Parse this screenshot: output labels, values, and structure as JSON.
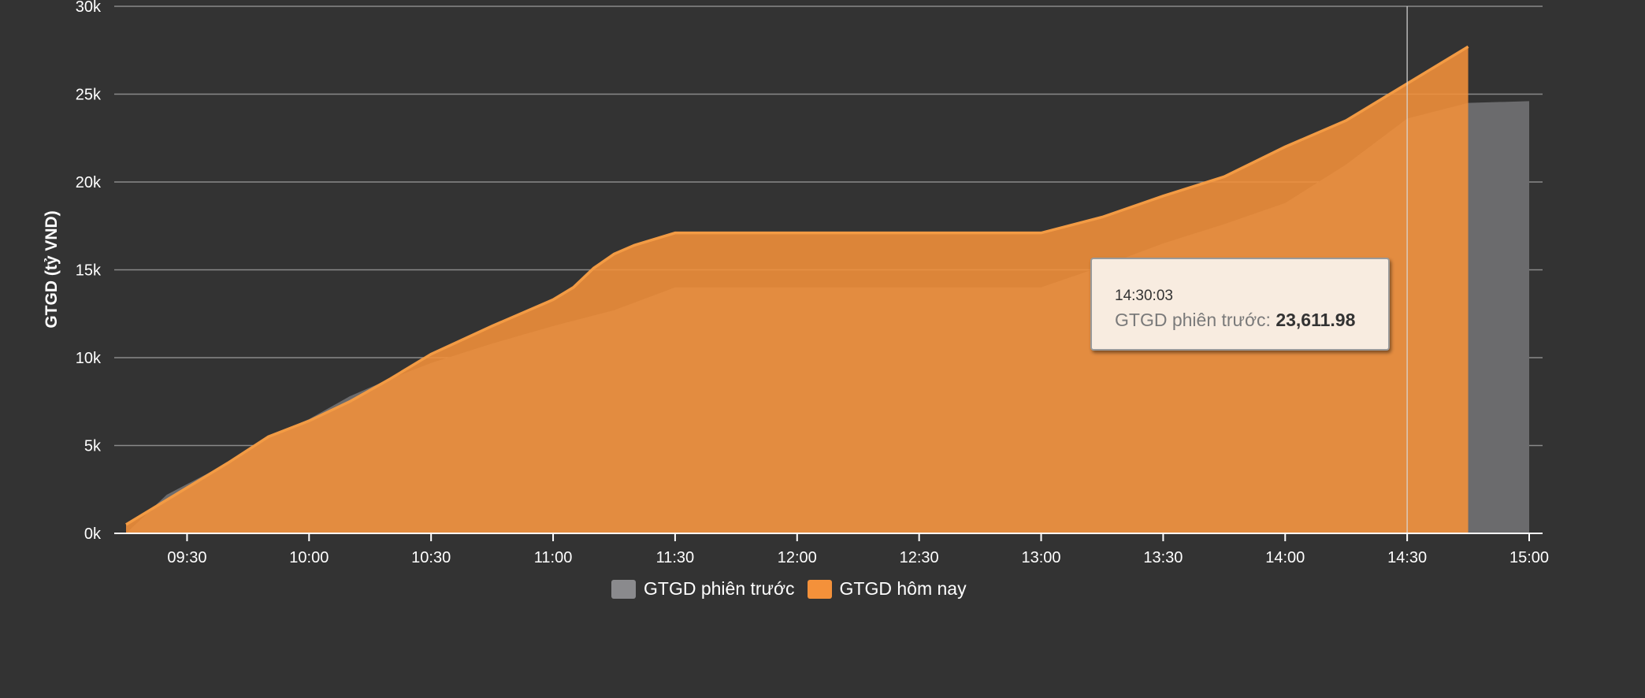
{
  "chart_data": {
    "type": "area",
    "title": "",
    "ylabel": "GTGD (tỷ VND)",
    "xlabel": "",
    "ylim": [
      0,
      30000
    ],
    "y_ticks": [
      "0k",
      "5k",
      "10k",
      "15k",
      "20k",
      "25k",
      "30k"
    ],
    "x_ticks": [
      "09:30",
      "10:00",
      "10:30",
      "11:00",
      "11:30",
      "12:00",
      "12:30",
      "13:00",
      "13:30",
      "14:00",
      "14:30",
      "15:00"
    ],
    "x_range": [
      "09:15",
      "15:00"
    ],
    "grid": true,
    "legend_placement": "bottom-center",
    "series": [
      {
        "name": "GTGD phiên trước",
        "color": "#6b6b6d",
        "points": [
          [
            "09:15",
            0
          ],
          [
            "09:20",
            1100
          ],
          [
            "09:25",
            2200
          ],
          [
            "09:30",
            2800
          ],
          [
            "09:40",
            4000
          ],
          [
            "09:50",
            5500
          ],
          [
            "10:00",
            6500
          ],
          [
            "10:10",
            7800
          ],
          [
            "10:20",
            8800
          ],
          [
            "10:30",
            9700
          ],
          [
            "10:45",
            10800
          ],
          [
            "11:00",
            11800
          ],
          [
            "11:15",
            12700
          ],
          [
            "11:30",
            14000
          ],
          [
            "13:00",
            14000
          ],
          [
            "13:15",
            15200
          ],
          [
            "13:30",
            16500
          ],
          [
            "13:45",
            17600
          ],
          [
            "14:00",
            18800
          ],
          [
            "14:15",
            21000
          ],
          [
            "14:30",
            23611.98
          ],
          [
            "14:45",
            24500
          ],
          [
            "15:00",
            24600
          ]
        ]
      },
      {
        "name": "GTGD hôm nay",
        "color": "#f4913a",
        "points": [
          [
            "09:15",
            500
          ],
          [
            "09:20",
            1200
          ],
          [
            "09:30",
            2600
          ],
          [
            "09:40",
            4000
          ],
          [
            "09:50",
            5500
          ],
          [
            "10:00",
            6400
          ],
          [
            "10:10",
            7500
          ],
          [
            "10:20",
            8800
          ],
          [
            "10:30",
            10200
          ],
          [
            "10:45",
            11800
          ],
          [
            "11:00",
            13300
          ],
          [
            "11:05",
            14000
          ],
          [
            "11:10",
            15100
          ],
          [
            "11:15",
            15900
          ],
          [
            "11:20",
            16400
          ],
          [
            "11:30",
            17100
          ],
          [
            "13:00",
            17100
          ],
          [
            "13:15",
            18000
          ],
          [
            "13:30",
            19200
          ],
          [
            "13:45",
            20300
          ],
          [
            "14:00",
            22000
          ],
          [
            "14:15",
            23500
          ],
          [
            "14:30",
            25600
          ],
          [
            "14:45",
            27700
          ]
        ]
      }
    ],
    "crosshair_time": "14:30",
    "tooltip": {
      "time": "14:30:03",
      "series_label": "GTGD phiên trước",
      "value": "23,611.98"
    }
  }
}
